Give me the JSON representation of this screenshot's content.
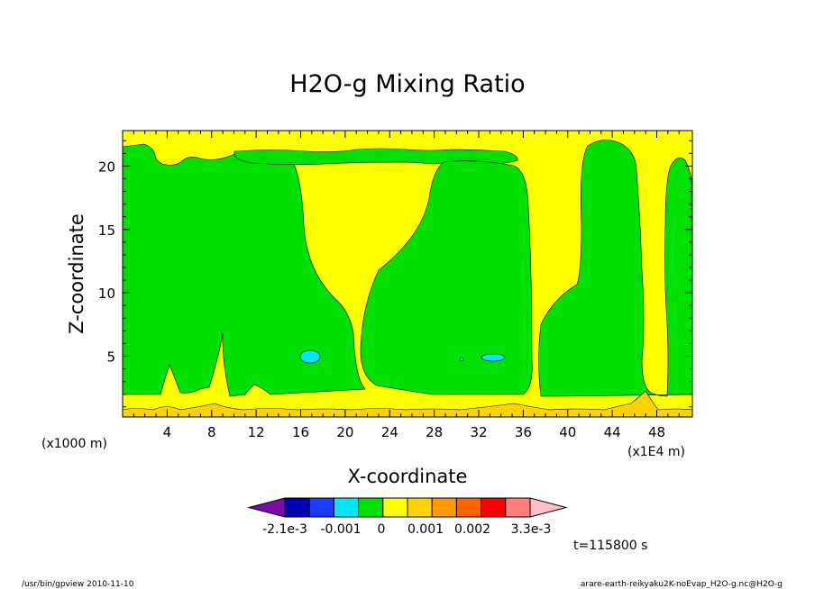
{
  "chart_data": {
    "type": "heatmap",
    "title": "H2O-g Mixing Ratio",
    "xlabel": "X-coordinate",
    "ylabel": "Z-coordinate",
    "x_unit_label": "(x1E4 m)",
    "y_unit_label": "(x1000 m)",
    "x_ticks": [
      4,
      8,
      12,
      16,
      20,
      24,
      28,
      32,
      36,
      40,
      44,
      48
    ],
    "y_ticks": [
      5,
      10,
      15,
      20
    ],
    "xlim": [
      0,
      51.2
    ],
    "ylim": [
      0.2,
      22.8
    ],
    "colorbar": {
      "levels": [
        -0.0021,
        -0.0015,
        -0.001,
        -0.0005,
        0,
        0.0005,
        0.001,
        0.0015,
        0.002,
        0.0027,
        0.0033
      ],
      "colors": [
        "#7a0da8",
        "#0000b4",
        "#1e3cff",
        "#00e6ff",
        "#00e000",
        "#ffff00",
        "#ffd200",
        "#ff9900",
        "#ff6400",
        "#ff0000",
        "#ff7e7e",
        "#ffbfc8"
      ],
      "tick_labels": [
        "-2.1e-3",
        "-0.001",
        "0",
        "0.001",
        "0.002",
        "3.3e-3"
      ]
    },
    "time_label": "t=115800 s"
  },
  "footer": {
    "left": "/usr/bin/gpview   2010-11-10",
    "right": "arare-earth-reikyaku2K-noEvap_H2O-g.nc@H2O-g"
  }
}
